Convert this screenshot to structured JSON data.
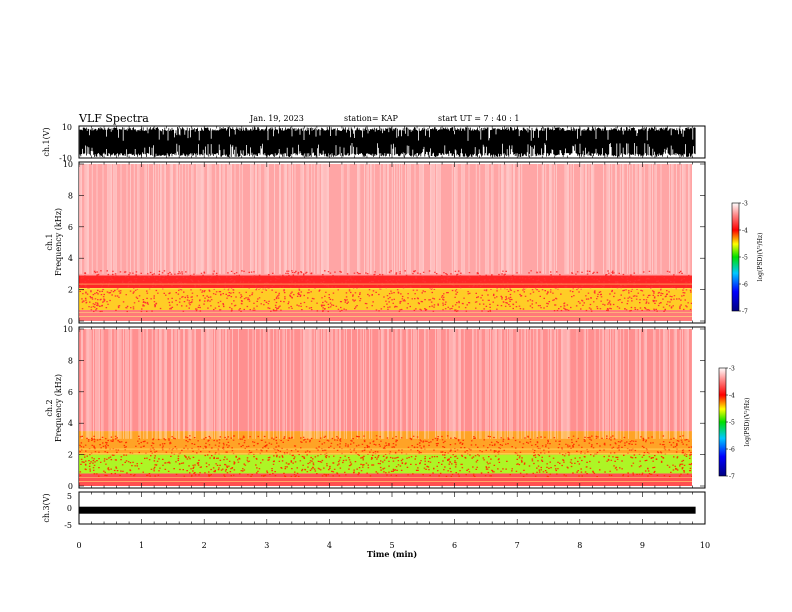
{
  "header": {
    "title": "VLF Spectra",
    "date": "Jan. 19, 2023",
    "station": "station= KAP",
    "start": "start  UT =   7 : 40 : 1"
  },
  "chart_data": [
    {
      "type": "line",
      "name": "ch1-waveform",
      "ylabel": "ch.1(V)",
      "ylim": [
        -10,
        10
      ],
      "ytick_labels": [
        "10",
        "-10"
      ],
      "xlim": [
        0,
        10
      ]
    },
    {
      "type": "heatmap",
      "name": "ch1-spectrogram",
      "ylabel_line1": "ch.1",
      "ylabel_line2": "Frequency  (kHz)",
      "ylim": [
        0,
        10
      ],
      "yticks": [
        0,
        2,
        4,
        6,
        8,
        10
      ],
      "ytick_labels": [
        "0",
        "2",
        "4",
        "6",
        "8",
        "10"
      ],
      "xlim": [
        0,
        9.85
      ],
      "bands": [
        {
          "from": 0,
          "to": 0.7,
          "level": -3.6
        },
        {
          "from": 0.7,
          "to": 2.1,
          "level": -4.4
        },
        {
          "from": 2.1,
          "to": 2.9,
          "level": -4.0
        },
        {
          "from": 2.9,
          "to": 10,
          "level": -3.4
        }
      ],
      "colorbar": {
        "label": "log(PSD)(V²/Hz)",
        "range": [
          -7,
          -3
        ],
        "ticks": [
          "-3",
          "-4",
          "-5",
          "-6",
          "-7"
        ]
      }
    },
    {
      "type": "heatmap",
      "name": "ch2-spectrogram",
      "ylabel_line1": "ch.2",
      "ylabel_line2": "Frequency  (kHz)",
      "ylim": [
        0,
        10
      ],
      "yticks": [
        0,
        2,
        4,
        6,
        8,
        10
      ],
      "ytick_labels": [
        "0",
        "2",
        "4",
        "6",
        "8",
        "10"
      ],
      "xlim": [
        0,
        9.85
      ],
      "bands": [
        {
          "from": 0,
          "to": 0.8,
          "level": -3.8
        },
        {
          "from": 0.8,
          "to": 2.0,
          "level": -4.7
        },
        {
          "from": 2.0,
          "to": 3.5,
          "level": -4.3
        },
        {
          "from": 3.5,
          "to": 10,
          "level": -3.5
        }
      ],
      "colorbar": {
        "label": "log(PSD)(V²/Hz)",
        "range": [
          -7,
          -3
        ],
        "ticks": [
          "-3",
          "-4",
          "-5",
          "-6",
          "-7"
        ]
      }
    },
    {
      "type": "line",
      "name": "ch3-waveform",
      "ylabel": "ch.3(V)",
      "ylim": [
        -5,
        5
      ],
      "ytick_labels": [
        "5",
        "0",
        "-5"
      ],
      "xlim": [
        0,
        10
      ],
      "level": -0.7
    }
  ],
  "xaxis": {
    "label": "Time  (min)",
    "ticks": [
      0,
      1,
      2,
      3,
      4,
      5,
      6,
      7,
      8,
      9,
      10
    ],
    "tick_labels": [
      "0",
      "1",
      "2",
      "3",
      "4",
      "5",
      "6",
      "7",
      "8",
      "9",
      "10"
    ]
  }
}
